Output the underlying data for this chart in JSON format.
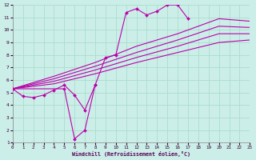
{
  "xlabel": "Windchill (Refroidissement éolien,°C)",
  "bg_color": "#cceee8",
  "grid_color": "#aaddcc",
  "line_color": "#bb00aa",
  "xlim": [
    0,
    23
  ],
  "ylim": [
    1,
    12
  ],
  "xticks": [
    0,
    1,
    2,
    3,
    4,
    5,
    6,
    7,
    8,
    9,
    10,
    11,
    12,
    13,
    14,
    15,
    16,
    17,
    18,
    19,
    20,
    21,
    22,
    23
  ],
  "yticks": [
    1,
    2,
    3,
    4,
    5,
    6,
    7,
    8,
    9,
    10,
    11,
    12
  ],
  "smooth_lines": [
    {
      "x": [
        0,
        4,
        8,
        12,
        16,
        20,
        23
      ],
      "y": [
        5.3,
        5.7,
        6.5,
        7.4,
        8.2,
        9.0,
        9.2
      ]
    },
    {
      "x": [
        0,
        4,
        8,
        12,
        16,
        20,
        23
      ],
      "y": [
        5.3,
        5.9,
        6.8,
        7.8,
        8.7,
        9.7,
        9.7
      ]
    },
    {
      "x": [
        0,
        4,
        8,
        12,
        16,
        20,
        23
      ],
      "y": [
        5.3,
        6.1,
        7.1,
        8.2,
        9.2,
        10.3,
        10.2
      ]
    },
    {
      "x": [
        0,
        4,
        8,
        12,
        16,
        20,
        23
      ],
      "y": [
        5.3,
        6.3,
        7.4,
        8.7,
        9.7,
        10.9,
        10.7
      ]
    }
  ],
  "jagged_line": {
    "x": [
      0,
      1,
      2,
      3,
      4,
      5,
      6,
      7,
      8,
      9,
      10,
      11,
      12,
      13,
      14,
      15,
      16,
      17
    ],
    "y": [
      5.3,
      4.7,
      4.6,
      4.8,
      5.2,
      5.6,
      4.8,
      3.6,
      5.6,
      7.8,
      8.0,
      11.4,
      11.7,
      11.2,
      11.5,
      12.0,
      12.0,
      10.9
    ]
  },
  "dip_line": {
    "x": [
      0,
      5,
      6,
      7,
      8
    ],
    "y": [
      5.3,
      5.3,
      1.3,
      2.0,
      5.6
    ]
  }
}
